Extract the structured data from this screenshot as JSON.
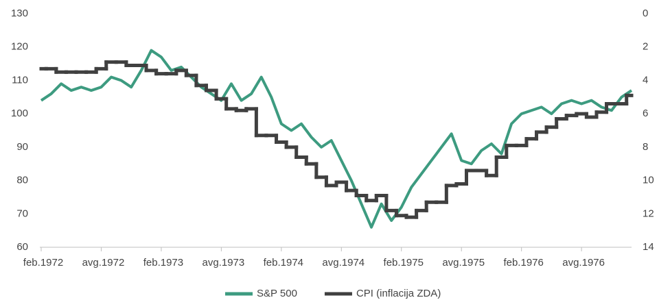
{
  "chart_data": {
    "type": "line",
    "categories": [
      "feb.1972",
      null,
      null,
      null,
      null,
      null,
      "avg.1972",
      null,
      null,
      null,
      null,
      null,
      "feb.1973",
      null,
      null,
      null,
      null,
      null,
      "avg.1973",
      null,
      null,
      null,
      null,
      null,
      "feb.1974",
      null,
      null,
      null,
      null,
      null,
      "avg.1974",
      null,
      null,
      null,
      null,
      null,
      "feb.1975",
      null,
      null,
      null,
      null,
      null,
      "avg.1975",
      null,
      null,
      null,
      null,
      null,
      "feb.1976",
      null,
      null,
      null,
      null,
      null,
      "avg.1976",
      null,
      null,
      null,
      null,
      null
    ],
    "series": [
      {
        "name": "S&P 500",
        "color": "#3d9b80",
        "axis": "y",
        "values": [
          104,
          106,
          109,
          107,
          108,
          107,
          108,
          111,
          110,
          108,
          113,
          119,
          117,
          113,
          114,
          111,
          108,
          106,
          104,
          109,
          104,
          106,
          111,
          105,
          97,
          95,
          97,
          93,
          90,
          92,
          86,
          80,
          73,
          66,
          73,
          68,
          72,
          78,
          82,
          86,
          90,
          94,
          86,
          85,
          89,
          91,
          88,
          97,
          100,
          101,
          102,
          100,
          103,
          104,
          103,
          104,
          102,
          101,
          105,
          107
        ]
      },
      {
        "name": "CPI (inflacija ZDA)",
        "color": "#404040",
        "axis": "y2",
        "step": true,
        "values": [
          3.3,
          3.3,
          3.5,
          3.5,
          3.5,
          3.5,
          3.3,
          2.9,
          2.9,
          3.1,
          3.1,
          3.4,
          3.6,
          3.6,
          3.4,
          3.7,
          4.3,
          4.6,
          5.1,
          5.7,
          5.8,
          5.7,
          7.3,
          7.3,
          7.7,
          8.0,
          8.6,
          9.0,
          9.8,
          10.3,
          10.1,
          10.6,
          10.9,
          11.2,
          10.9,
          11.8,
          12.1,
          12.2,
          11.8,
          11.3,
          11.3,
          10.3,
          10.2,
          9.4,
          9.4,
          9.7,
          8.6,
          7.9,
          7.9,
          7.5,
          7.1,
          6.8,
          6.3,
          6.1,
          6.0,
          6.2,
          5.9,
          5.4,
          5.4,
          4.9
        ]
      }
    ],
    "ylim": [
      60,
      130
    ],
    "yticks": [
      60,
      70,
      80,
      90,
      100,
      110,
      120,
      130
    ],
    "y2lim": [
      14,
      0
    ],
    "y2ticks": [
      0,
      2,
      4,
      6,
      8,
      10,
      12,
      14
    ],
    "legend": "bottom"
  }
}
